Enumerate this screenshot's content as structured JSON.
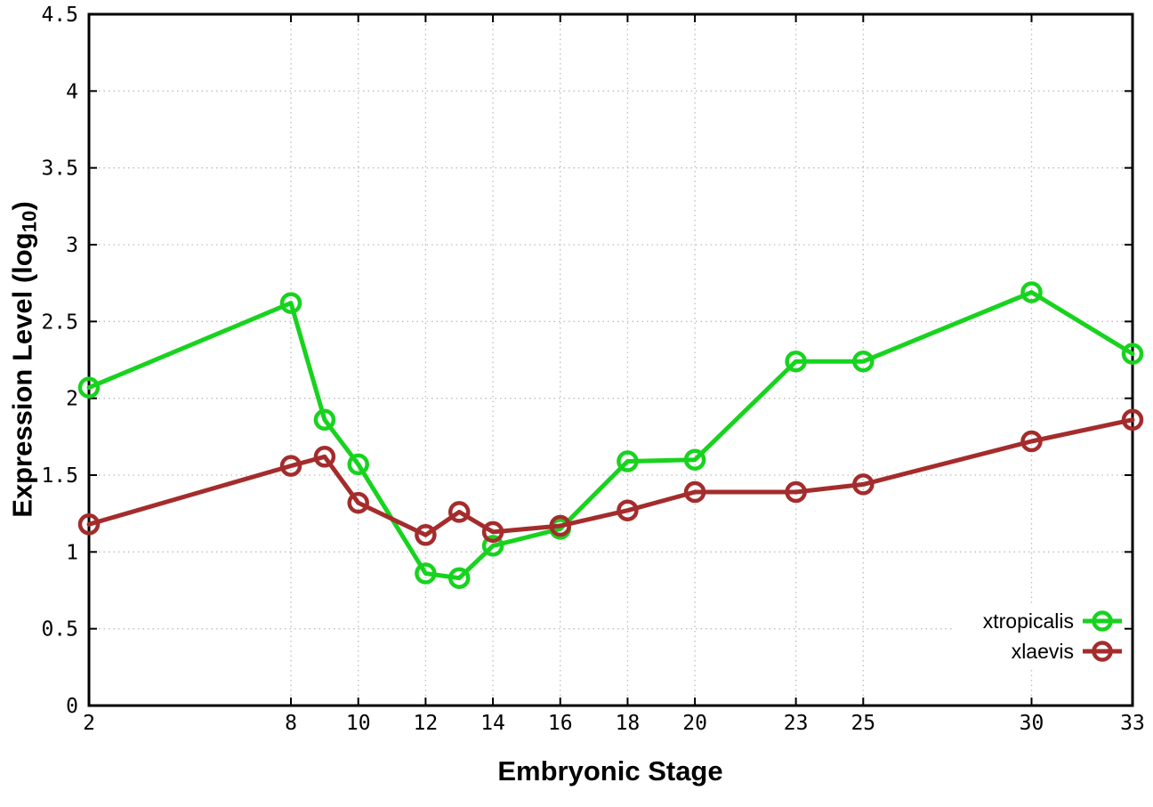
{
  "chart_data": {
    "type": "line",
    "title": "",
    "xlabel": "Embryonic Stage",
    "ylabel": "Expression Level (log10)",
    "ylabel_parts": {
      "main": "Expression Level (log",
      "sub": "10",
      "end": ")"
    },
    "xlim": [
      2,
      33
    ],
    "ylim": [
      0,
      4.5
    ],
    "grid": true,
    "legend_position": "inside-bottom-right",
    "x_ticks": [
      2,
      8,
      10,
      12,
      14,
      16,
      18,
      20,
      23,
      25,
      30,
      33
    ],
    "x_tick_labels": [
      "2",
      "8",
      "10",
      "12",
      "14",
      "16",
      "18",
      "20",
      "23",
      "25",
      "30",
      "33"
    ],
    "y_ticks": [
      0,
      0.5,
      1,
      1.5,
      2,
      2.5,
      3,
      3.5,
      4,
      4.5
    ],
    "y_tick_labels": [
      "0",
      "0.5",
      "1",
      "1.5",
      "2",
      "2.5",
      "3",
      "3.5",
      "4",
      "4.5"
    ],
    "x": [
      2,
      8,
      9,
      10,
      12,
      13,
      14,
      16,
      18,
      20,
      23,
      25,
      30,
      33
    ],
    "series": [
      {
        "name": "xtropicalis",
        "color": "#17d31e",
        "marker": "open-circle",
        "values": [
          2.07,
          2.62,
          1.86,
          1.57,
          0.86,
          0.83,
          1.04,
          1.15,
          1.59,
          1.6,
          2.24,
          2.24,
          2.69,
          2.29
        ]
      },
      {
        "name": "xlaevis",
        "color": "#a42c2c",
        "marker": "open-circle",
        "values": [
          1.18,
          1.56,
          1.62,
          1.32,
          1.11,
          1.26,
          1.13,
          1.17,
          1.27,
          1.39,
          1.39,
          1.44,
          1.72,
          1.86
        ]
      }
    ],
    "colors": {
      "grid": "#bdbdbd",
      "axis": "#000000",
      "background": "#ffffff"
    }
  }
}
